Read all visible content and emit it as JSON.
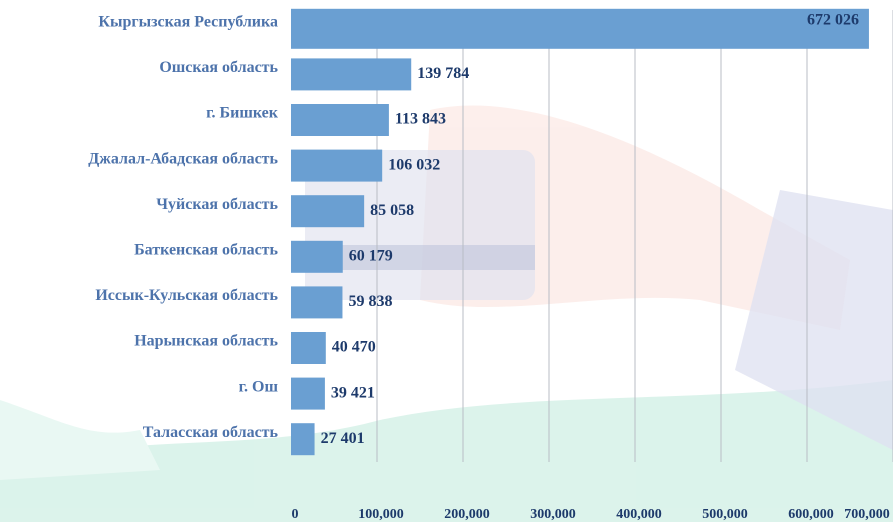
{
  "chart_data": {
    "type": "bar",
    "orientation": "horizontal",
    "categories": [
      "Кыргызская  Республика",
      "Ошская  область",
      "г. Бишкек",
      "Джалал-Абадская область",
      "Чуйская область",
      "Баткенская область",
      "Иссык-Кульская   область",
      "Нарынская  область",
      "г. Ош",
      "Таласская  область"
    ],
    "values": [
      672026,
      139784,
      113843,
      106032,
      85058,
      60179,
      59838,
      40470,
      39421,
      27401
    ],
    "value_labels": [
      "672 026",
      "139 784",
      "113 843",
      "106 032",
      "85 058",
      "60  179",
      "59 838",
      "40 470",
      "39 421",
      "27 401"
    ],
    "color": "#6a9fd2",
    "xlim": [
      0,
      700000
    ],
    "xticks": [
      {
        "value": 0,
        "label": "0"
      },
      {
        "value": 100000,
        "label": "100,000"
      },
      {
        "value": 200000,
        "label": "200,000"
      },
      {
        "value": 300000,
        "label": "300,000"
      },
      {
        "value": 400000,
        "label": "400,000"
      },
      {
        "value": 500000,
        "label": "500,000"
      },
      {
        "value": 600000,
        "label": "600,000"
      },
      {
        "value": 700000,
        "label": "700,000"
      }
    ],
    "grid": true
  }
}
